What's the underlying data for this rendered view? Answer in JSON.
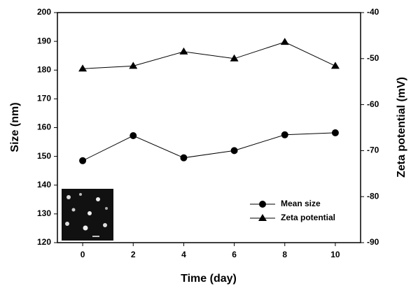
{
  "chart_data": {
    "type": "line",
    "x": [
      0,
      2,
      4,
      6,
      8,
      10
    ],
    "xlim": [
      -1,
      11
    ],
    "xticks": [
      0,
      2,
      4,
      6,
      8,
      10
    ],
    "xlabel": "Time (day)",
    "ylabel": "Size (nm)",
    "y2label": "Zeta potential (mV)",
    "ylim": [
      120,
      200
    ],
    "yticks": [
      120,
      130,
      140,
      150,
      160,
      170,
      180,
      190,
      200
    ],
    "y2lim": [
      -90,
      -40
    ],
    "y2ticks": [
      -90,
      -80,
      -70,
      -60,
      -50,
      -40
    ],
    "legend": "lower right",
    "series": [
      {
        "name": "Mean size",
        "color": "#000000",
        "marker": "circle",
        "values": [
          148.5,
          157.2,
          149.5,
          152,
          157.5,
          158.2
        ]
      },
      {
        "name": "Zeta potential",
        "color": "#000000",
        "marker": "triangle",
        "axis": "y2",
        "values": [
          -52.2,
          -51.6,
          -48.5,
          -50,
          -46.4,
          -51.6
        ]
      }
    ]
  }
}
